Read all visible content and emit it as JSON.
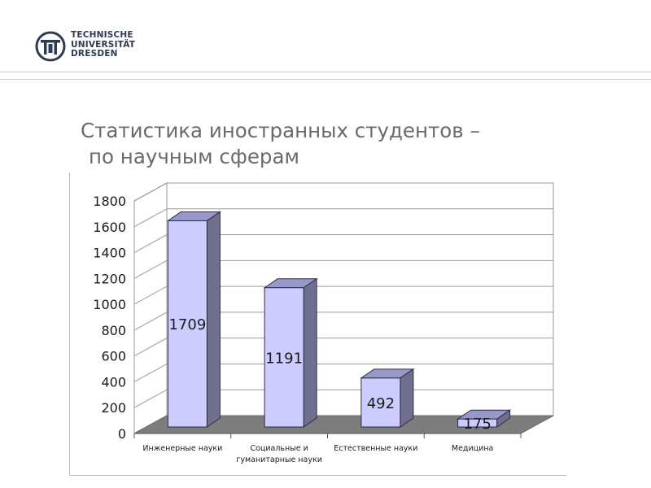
{
  "header": {
    "logo": {
      "lines": [
        "TECHNISCHE",
        "UNIVERSITÄT",
        "DRESDEN"
      ]
    }
  },
  "slide": {
    "title_line1": "Статистика иностранных студентов –",
    "title_line2": "по научным сферам"
  },
  "colors": {
    "bar_front": "#ccccff",
    "bar_side": "#6f6f90",
    "bar_top": "#9898c8",
    "floor": "#7d7d7d",
    "grid": "#9a9a9a",
    "text": "#1a1a1a"
  },
  "chart_data": {
    "type": "bar",
    "style": "3d-columns",
    "title": "",
    "xlabel": "",
    "ylabel": "",
    "ylim": [
      0,
      1800
    ],
    "yticks": [
      0,
      200,
      400,
      600,
      800,
      1000,
      1200,
      1400,
      1600,
      1800
    ],
    "grid": true,
    "legend": "none",
    "categories": [
      [
        "Инженерные науки"
      ],
      [
        "Социальные и",
        "гуманитарные науки"
      ],
      [
        "Естественные науки"
      ],
      [
        "Медицина"
      ]
    ],
    "values": [
      1709,
      1191,
      492,
      175
    ],
    "data_labels": [
      "1709",
      "1191",
      "492",
      "175"
    ]
  }
}
